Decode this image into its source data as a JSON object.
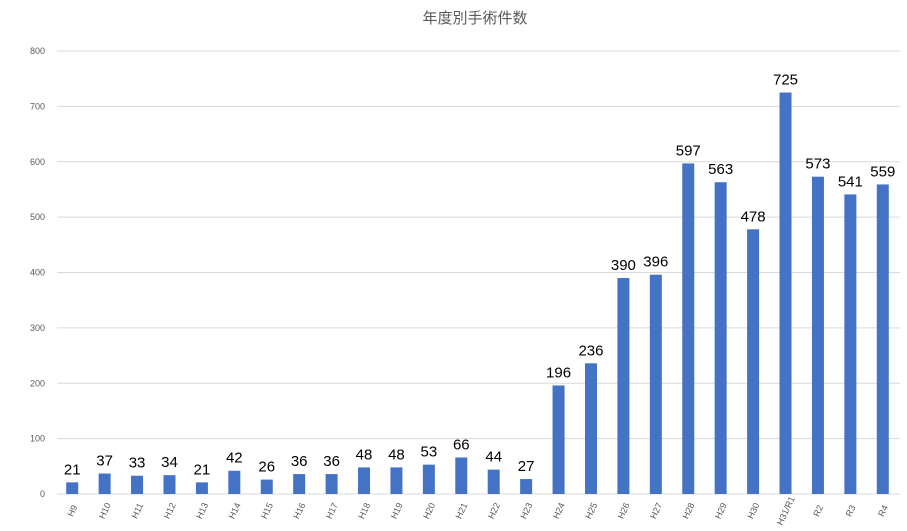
{
  "chart_data": {
    "type": "bar",
    "title": "年度別手術件数",
    "xlabel": "",
    "ylabel": "",
    "ylim": [
      0,
      800
    ],
    "yticks": [
      0,
      100,
      200,
      300,
      400,
      500,
      600,
      700,
      800
    ],
    "grid": true,
    "legend": "none",
    "categories": [
      "H9",
      "H10",
      "H11",
      "H12",
      "H13",
      "H14",
      "H15",
      "H16",
      "H17",
      "H18",
      "H19",
      "H20",
      "H21",
      "H22",
      "H23",
      "H24",
      "H25",
      "H26",
      "H27",
      "H28",
      "H29",
      "H30",
      "H31/R1",
      "R2",
      "R3",
      "R4"
    ],
    "series": [
      {
        "values": [
          21,
          37,
          33,
          34,
          21,
          42,
          26,
          36,
          36,
          48,
          48,
          53,
          66,
          44,
          27,
          196,
          236,
          390,
          396,
          597,
          563,
          478,
          725,
          573,
          541,
          559
        ],
        "color": "#4472c4"
      }
    ]
  }
}
